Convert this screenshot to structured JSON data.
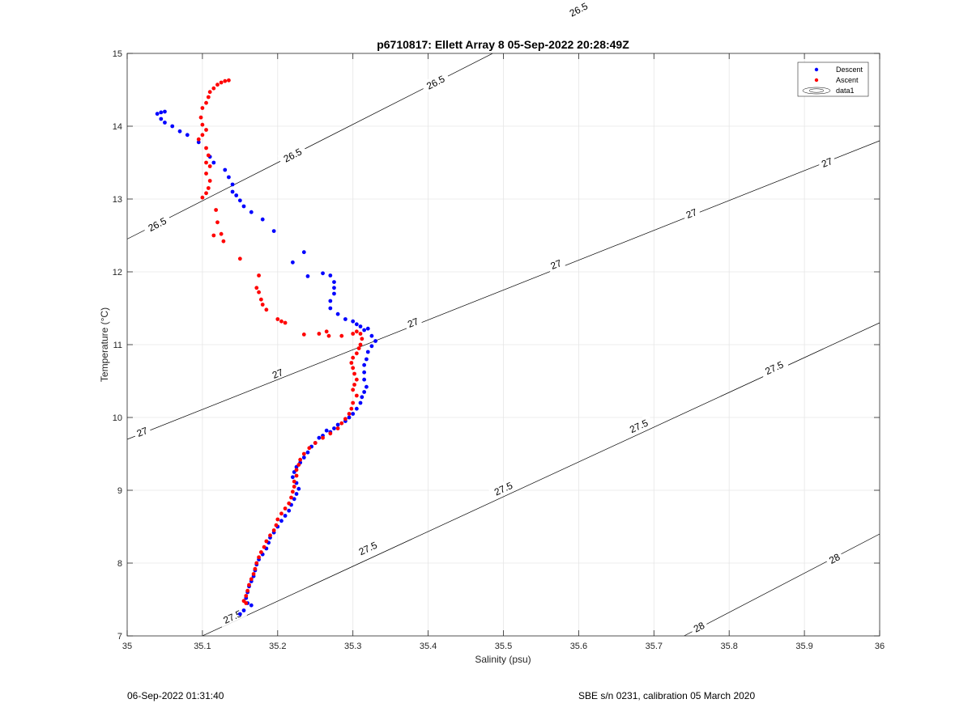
{
  "footer": {
    "timestamp": "06-Sep-2022 01:31:40",
    "instrument": "SBE s/n 0231, calibration 05 March 2020"
  },
  "chart_data": {
    "type": "scatter",
    "title": "p6710817: Ellett Array 8 05-Sep-2022 20:28:49Z",
    "xlabel": "Salinity (psu)",
    "ylabel": "Temperature (°C)",
    "xlim": [
      35,
      36
    ],
    "ylim": [
      7,
      15
    ],
    "xticks": [
      "35",
      "35.1",
      "35.2",
      "35.3",
      "35.4",
      "35.5",
      "35.6",
      "35.7",
      "35.8",
      "35.9",
      "36"
    ],
    "yticks": [
      "7",
      "8",
      "9",
      "10",
      "11",
      "12",
      "13",
      "14",
      "15"
    ],
    "grid": true,
    "legend_position": "top-right",
    "legend": [
      "Descent",
      "Ascent",
      "data1"
    ],
    "contours": [
      {
        "level": "26.5",
        "points": [
          [
            35.0,
            12.45
          ],
          [
            36.0,
            17.7
          ]
        ],
        "labels": [
          [
            35.04,
            12.65
          ],
          [
            35.22,
            13.6
          ],
          [
            35.41,
            14.6
          ],
          [
            35.6,
            15.6
          ]
        ]
      },
      {
        "level": "27",
        "points": [
          [
            35.0,
            9.7
          ],
          [
            36.0,
            13.8
          ]
        ],
        "labels": [
          [
            35.02,
            9.8
          ],
          [
            35.2,
            10.6
          ],
          [
            35.38,
            11.3
          ],
          [
            35.57,
            12.1
          ],
          [
            35.75,
            12.8
          ],
          [
            35.93,
            13.5
          ]
        ]
      },
      {
        "level": "27.5",
        "points": [
          [
            35.1,
            7.0
          ],
          [
            36.0,
            11.3
          ]
        ],
        "labels": [
          [
            35.14,
            7.26
          ],
          [
            35.32,
            8.2
          ],
          [
            35.5,
            9.02
          ],
          [
            35.68,
            9.88
          ],
          [
            35.86,
            10.68
          ]
        ]
      },
      {
        "level": "28",
        "points": [
          [
            35.74,
            7.0
          ],
          [
            36.0,
            8.4
          ]
        ],
        "labels": [
          [
            35.76,
            7.12
          ],
          [
            35.94,
            8.06
          ]
        ]
      }
    ],
    "series": [
      {
        "name": "Descent",
        "color": "#0000ff",
        "points": [
          [
            35.04,
            14.17
          ],
          [
            35.045,
            14.19
          ],
          [
            35.05,
            14.2
          ],
          [
            35.045,
            14.1
          ],
          [
            35.05,
            14.05
          ],
          [
            35.06,
            14.0
          ],
          [
            35.07,
            13.93
          ],
          [
            35.08,
            13.88
          ],
          [
            35.095,
            13.78
          ],
          [
            35.11,
            13.58
          ],
          [
            35.115,
            13.5
          ],
          [
            35.13,
            13.4
          ],
          [
            35.135,
            13.3
          ],
          [
            35.14,
            13.2
          ],
          [
            35.14,
            13.1
          ],
          [
            35.145,
            13.05
          ],
          [
            35.15,
            12.98
          ],
          [
            35.155,
            12.9
          ],
          [
            35.165,
            12.82
          ],
          [
            35.18,
            12.72
          ],
          [
            35.195,
            12.56
          ],
          [
            35.235,
            12.27
          ],
          [
            35.22,
            12.13
          ],
          [
            35.24,
            11.94
          ],
          [
            35.26,
            11.98
          ],
          [
            35.27,
            11.95
          ],
          [
            35.275,
            11.86
          ],
          [
            35.275,
            11.78
          ],
          [
            35.275,
            11.7
          ],
          [
            35.27,
            11.6
          ],
          [
            35.27,
            11.5
          ],
          [
            35.28,
            11.42
          ],
          [
            35.29,
            11.35
          ],
          [
            35.3,
            11.32
          ],
          [
            35.305,
            11.28
          ],
          [
            35.31,
            11.25
          ],
          [
            35.315,
            11.2
          ],
          [
            35.32,
            11.22
          ],
          [
            35.325,
            11.12
          ],
          [
            35.33,
            11.05
          ],
          [
            35.325,
            10.98
          ],
          [
            35.32,
            10.9
          ],
          [
            35.318,
            10.8
          ],
          [
            35.315,
            10.72
          ],
          [
            35.315,
            10.62
          ],
          [
            35.315,
            10.52
          ],
          [
            35.318,
            10.42
          ],
          [
            35.315,
            10.35
          ],
          [
            35.312,
            10.28
          ],
          [
            35.31,
            10.2
          ],
          [
            35.305,
            10.12
          ],
          [
            35.3,
            10.05
          ],
          [
            35.295,
            10.0
          ],
          [
            35.29,
            9.95
          ],
          [
            35.28,
            9.9
          ],
          [
            35.275,
            9.85
          ],
          [
            35.27,
            9.8
          ],
          [
            35.265,
            9.82
          ],
          [
            35.26,
            9.75
          ],
          [
            35.255,
            9.72
          ],
          [
            35.25,
            9.65
          ],
          [
            35.245,
            9.6
          ],
          [
            35.24,
            9.52
          ],
          [
            35.235,
            9.45
          ],
          [
            35.23,
            9.38
          ],
          [
            35.225,
            9.32
          ],
          [
            35.222,
            9.25
          ],
          [
            35.22,
            9.18
          ],
          [
            35.225,
            9.1
          ],
          [
            35.228,
            9.02
          ],
          [
            35.225,
            8.95
          ],
          [
            35.222,
            8.88
          ],
          [
            35.218,
            8.8
          ],
          [
            35.215,
            8.72
          ],
          [
            35.21,
            8.65
          ],
          [
            35.205,
            8.58
          ],
          [
            35.2,
            8.5
          ],
          [
            35.195,
            8.42
          ],
          [
            35.19,
            8.35
          ],
          [
            35.188,
            8.28
          ],
          [
            35.185,
            8.2
          ],
          [
            35.18,
            8.12
          ],
          [
            35.175,
            8.05
          ],
          [
            35.172,
            7.98
          ],
          [
            35.17,
            7.9
          ],
          [
            35.168,
            7.82
          ],
          [
            35.165,
            7.75
          ],
          [
            35.162,
            7.68
          ],
          [
            35.16,
            7.6
          ],
          [
            35.158,
            7.52
          ],
          [
            35.16,
            7.45
          ],
          [
            35.165,
            7.42
          ],
          [
            35.155,
            7.35
          ],
          [
            35.15,
            7.3
          ]
        ]
      },
      {
        "name": "Ascent",
        "color": "#ff0000",
        "points": [
          [
            35.135,
            14.63
          ],
          [
            35.13,
            14.62
          ],
          [
            35.125,
            14.6
          ],
          [
            35.12,
            14.57
          ],
          [
            35.115,
            14.52
          ],
          [
            35.11,
            14.47
          ],
          [
            35.108,
            14.4
          ],
          [
            35.105,
            14.32
          ],
          [
            35.1,
            14.25
          ],
          [
            35.098,
            14.12
          ],
          [
            35.1,
            14.02
          ],
          [
            35.105,
            13.95
          ],
          [
            35.1,
            13.88
          ],
          [
            35.095,
            13.82
          ],
          [
            35.105,
            13.7
          ],
          [
            35.108,
            13.6
          ],
          [
            35.105,
            13.5
          ],
          [
            35.11,
            13.45
          ],
          [
            35.105,
            13.35
          ],
          [
            35.11,
            13.25
          ],
          [
            35.108,
            13.15
          ],
          [
            35.105,
            13.08
          ],
          [
            35.1,
            13.02
          ],
          [
            35.118,
            12.85
          ],
          [
            35.12,
            12.68
          ],
          [
            35.115,
            12.5
          ],
          [
            35.125,
            12.52
          ],
          [
            35.128,
            12.42
          ],
          [
            35.15,
            12.18
          ],
          [
            35.175,
            11.95
          ],
          [
            35.172,
            11.78
          ],
          [
            35.175,
            11.72
          ],
          [
            35.178,
            11.62
          ],
          [
            35.18,
            11.55
          ],
          [
            35.185,
            11.48
          ],
          [
            35.2,
            11.35
          ],
          [
            35.205,
            11.32
          ],
          [
            35.21,
            11.3
          ],
          [
            35.235,
            11.14
          ],
          [
            35.255,
            11.15
          ],
          [
            35.265,
            11.18
          ],
          [
            35.268,
            11.12
          ],
          [
            35.285,
            11.12
          ],
          [
            35.3,
            11.15
          ],
          [
            35.305,
            11.18
          ],
          [
            35.31,
            11.15
          ],
          [
            35.312,
            11.08
          ],
          [
            35.31,
            11.0
          ],
          [
            35.308,
            10.95
          ],
          [
            35.305,
            10.88
          ],
          [
            35.3,
            10.82
          ],
          [
            35.298,
            10.75
          ],
          [
            35.3,
            10.68
          ],
          [
            35.302,
            10.6
          ],
          [
            35.305,
            10.52
          ],
          [
            35.302,
            10.45
          ],
          [
            35.3,
            10.38
          ],
          [
            35.305,
            10.3
          ],
          [
            35.3,
            10.2
          ],
          [
            35.298,
            10.12
          ],
          [
            35.295,
            10.05
          ],
          [
            35.29,
            9.98
          ],
          [
            35.285,
            9.92
          ],
          [
            35.28,
            9.85
          ],
          [
            35.27,
            9.78
          ],
          [
            35.26,
            9.72
          ],
          [
            35.25,
            9.65
          ],
          [
            35.242,
            9.58
          ],
          [
            35.235,
            9.5
          ],
          [
            35.23,
            9.42
          ],
          [
            35.228,
            9.35
          ],
          [
            35.225,
            9.28
          ],
          [
            35.225,
            9.2
          ],
          [
            35.222,
            9.12
          ],
          [
            35.222,
            9.05
          ],
          [
            35.22,
            8.98
          ],
          [
            35.218,
            8.9
          ],
          [
            35.215,
            8.82
          ],
          [
            35.21,
            8.75
          ],
          [
            35.205,
            8.68
          ],
          [
            35.2,
            8.6
          ],
          [
            35.198,
            8.52
          ],
          [
            35.195,
            8.45
          ],
          [
            35.19,
            8.38
          ],
          [
            35.185,
            8.3
          ],
          [
            35.182,
            8.22
          ],
          [
            35.178,
            8.15
          ],
          [
            35.175,
            8.08
          ],
          [
            35.172,
            8.0
          ],
          [
            35.17,
            7.92
          ],
          [
            35.168,
            7.85
          ],
          [
            35.165,
            7.78
          ],
          [
            35.162,
            7.7
          ],
          [
            35.16,
            7.62
          ],
          [
            35.158,
            7.55
          ],
          [
            35.155,
            7.48
          ],
          [
            35.158,
            7.45
          ]
        ]
      }
    ]
  }
}
